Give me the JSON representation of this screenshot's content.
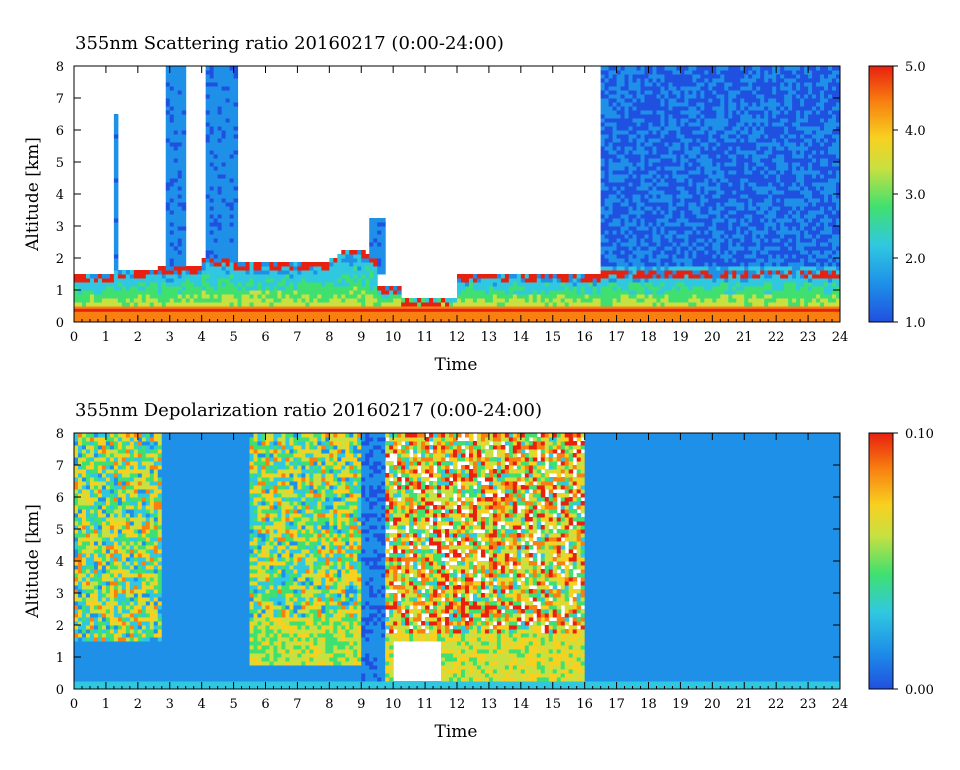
{
  "chart_data": [
    {
      "type": "heatmap",
      "title": "355nm Scattering ratio  20160217 (0:00-24:00)",
      "xlabel": "Time",
      "ylabel": "Altitude [km]",
      "xlim": [
        0,
        24
      ],
      "ylim": [
        0,
        8
      ],
      "x_ticks": [
        "0",
        "1",
        "2",
        "3",
        "4",
        "5",
        "6",
        "7",
        "8",
        "9",
        "10",
        "11",
        "12",
        "13",
        "14",
        "15",
        "16",
        "17",
        "18",
        "19",
        "20",
        "21",
        "22",
        "23",
        "24"
      ],
      "y_ticks": [
        "0",
        "1",
        "2",
        "3",
        "4",
        "5",
        "6",
        "7",
        "8"
      ],
      "colorbar": {
        "min": 1.0,
        "max": 5.0,
        "labels": [
          "1.0",
          "2.0",
          "3.0",
          "4.0",
          "5.0"
        ]
      },
      "colormap": [
        "#2050e0",
        "#1e90e8",
        "#30c8e0",
        "#40e070",
        "#c8e040",
        "#f8d020",
        "#f88010",
        "#e82010"
      ],
      "grid": false
    },
    {
      "type": "heatmap",
      "title": "355nm Depolarization ratio  20160217 (0:00-24:00)",
      "xlabel": "Time",
      "ylabel": "Altitude [km]",
      "xlim": [
        0,
        24
      ],
      "ylim": [
        0,
        8
      ],
      "x_ticks": [
        "0",
        "1",
        "2",
        "3",
        "4",
        "5",
        "6",
        "7",
        "8",
        "9",
        "10",
        "11",
        "12",
        "13",
        "14",
        "15",
        "16",
        "17",
        "18",
        "19",
        "20",
        "21",
        "22",
        "23",
        "24"
      ],
      "y_ticks": [
        "0",
        "1",
        "2",
        "3",
        "4",
        "5",
        "6",
        "7",
        "8"
      ],
      "colorbar": {
        "min": 0.0,
        "max": 0.1,
        "labels": [
          "0.00",
          "0.10"
        ]
      },
      "colormap": [
        "#2050e0",
        "#1e90e8",
        "#30c8e0",
        "#40e070",
        "#c8e040",
        "#f8d020",
        "#f88010",
        "#e82010"
      ],
      "grid": false
    }
  ]
}
